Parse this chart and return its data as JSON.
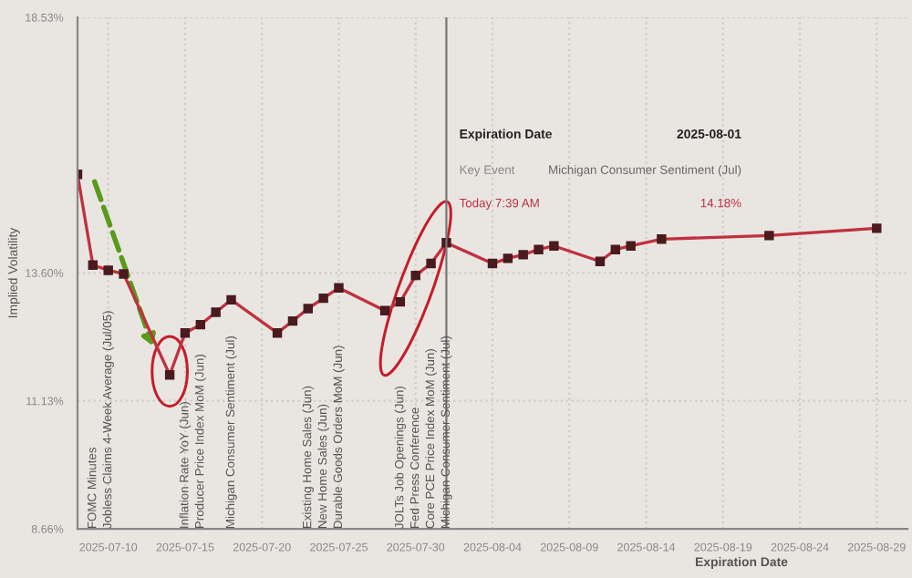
{
  "chart_data": {
    "type": "line",
    "xlabel": "Expiration Date",
    "ylabel": "Implied Volatility",
    "x": [
      "2025-07-08",
      "2025-07-09",
      "2025-07-10",
      "2025-07-11",
      "2025-07-14",
      "2025-07-15",
      "2025-07-16",
      "2025-07-17",
      "2025-07-18",
      "2025-07-21",
      "2025-07-22",
      "2025-07-23",
      "2025-07-24",
      "2025-07-25",
      "2025-07-28",
      "2025-07-29",
      "2025-07-30",
      "2025-07-31",
      "2025-08-01",
      "2025-08-04",
      "2025-08-05",
      "2025-08-06",
      "2025-08-07",
      "2025-08-08",
      "2025-08-11",
      "2025-08-12",
      "2025-08-13",
      "2025-08-15",
      "2025-08-22",
      "2025-08-29"
    ],
    "series": [
      {
        "color": "#c0313f",
        "values": [
          15.5,
          13.75,
          13.65,
          13.58,
          11.63,
          12.44,
          12.6,
          12.84,
          13.08,
          12.44,
          12.67,
          12.91,
          13.11,
          13.31,
          12.87,
          13.04,
          13.55,
          13.78,
          14.18,
          13.78,
          13.88,
          13.95,
          14.05,
          14.12,
          13.82,
          14.05,
          14.12,
          14.25,
          14.32,
          14.46
        ]
      }
    ],
    "marker": "square",
    "line_style": "solid",
    "xlim": [
      "2025-07-08",
      "2025-08-31"
    ],
    "xticks": [
      {
        "value": "2025-07-10",
        "label": "2025-07-10"
      },
      {
        "value": "2025-07-15",
        "label": "2025-07-15"
      },
      {
        "value": "2025-07-20",
        "label": "2025-07-20"
      },
      {
        "value": "2025-07-25",
        "label": "2025-07-25"
      },
      {
        "value": "2025-07-30",
        "label": "2025-07-30"
      },
      {
        "value": "2025-08-04",
        "label": "2025-08-04"
      },
      {
        "value": "2025-08-09",
        "label": "2025-08-09"
      },
      {
        "value": "2025-08-14",
        "label": "2025-08-14"
      },
      {
        "value": "2025-08-19",
        "label": "2025-08-19"
      },
      {
        "value": "2025-08-24",
        "label": "2025-08-24"
      },
      {
        "value": "2025-08-29",
        "label": "2025-08-29"
      }
    ],
    "ylim": [
      8.66,
      18.53
    ],
    "yticks": [
      {
        "value": 8.66,
        "label": "8.66%"
      },
      {
        "value": 11.13,
        "label": "11.13%"
      },
      {
        "value": 13.6,
        "label": "13.60%"
      },
      {
        "value": 18.53,
        "label": "18.53%"
      }
    ],
    "grid": true,
    "ref_lines": [
      {
        "axis": "x",
        "value": "2025-08-01",
        "color": "#777777"
      }
    ],
    "annotations": [
      "FOMC Minutes",
      "Jobless Claims 4-Week Average (Jul/05)",
      "Inflation Rate YoY (Jun)",
      "Producer Price Index MoM (Jun)",
      "Michigan Consumer Sentiment (Jul)",
      "Existing Home Sales (Jun)",
      "New Home Sales (Jun)",
      "Durable Goods Orders MoM (Jun)",
      "JOLTs Job Openings (Jun)",
      "Fed Press Conference",
      "Core PCE Price Index MoM (Jun)",
      "Michigan Consumer Sentiment (Jul)",
      "Expiration Date",
      "2025-08-01",
      "Key Event",
      "Michigan Consumer Sentiment (Jul)",
      "Today 7:39 AM",
      "14.18%"
    ]
  }
}
